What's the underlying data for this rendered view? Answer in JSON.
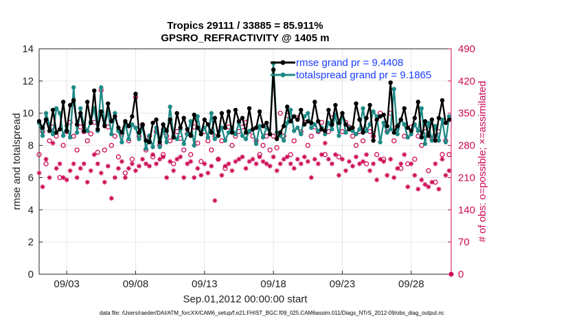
{
  "chart_data": {
    "type": "line",
    "title": "Tropics 29111 / 33885 = 85.911%",
    "subtitle": "GPSRO_REFRACTIVITY @ 1405 m",
    "xlabel": "Sep.01,2012 00:00:00 start",
    "ylabel_left": "rmse and totalspread",
    "ylabel_right": "# of obs: o=possible; ×=assimilated",
    "xlim": [
      1,
      30.9
    ],
    "ylim_left": [
      0,
      14
    ],
    "ylim_right": [
      0,
      490
    ],
    "x_ticks": [
      {
        "value": 3,
        "label": "09/03"
      },
      {
        "value": 8,
        "label": "09/08"
      },
      {
        "value": 13,
        "label": "09/13"
      },
      {
        "value": 18,
        "label": "09/18"
      },
      {
        "value": 23,
        "label": "09/23"
      },
      {
        "value": 28,
        "label": "09/28"
      }
    ],
    "y_ticks_left": [
      "0",
      "2",
      "4",
      "6",
      "8",
      "10",
      "12",
      "14"
    ],
    "y_ticks_right": [
      "0",
      "70",
      "140",
      "210",
      "280",
      "350",
      "420",
      "490"
    ],
    "grid": true,
    "legend": "top-right",
    "footer": "data file: /Users/raeder/DAI/ATM_forcXX/CAM6_setup/f.e21.FHIST_BGC.f09_025.CAM6assim.011/Diags_NTrS_2012-09/obs_diag_output.nc",
    "series": [
      {
        "name": "rmse grand pr = 9.4408",
        "color": "#000000",
        "axis": "left",
        "x": [
          1.0,
          1.25,
          1.5,
          1.75,
          2.0,
          2.25,
          2.5,
          2.75,
          3.0,
          3.25,
          3.5,
          3.75,
          4.0,
          4.25,
          4.5,
          4.75,
          5.0,
          5.25,
          5.5,
          5.75,
          6.0,
          6.25,
          6.5,
          6.75,
          7.0,
          7.25,
          7.5,
          7.75,
          8.0,
          8.25,
          8.5,
          8.75,
          9.0,
          9.25,
          9.5,
          9.75,
          10.0,
          10.25,
          10.5,
          10.75,
          11.0,
          11.25,
          11.5,
          11.75,
          12.0,
          12.25,
          12.5,
          12.75,
          13.0,
          13.25,
          13.5,
          13.75,
          14.0,
          14.25,
          14.5,
          14.75,
          15.0,
          15.25,
          15.5,
          15.75,
          16.0,
          16.25,
          16.5,
          16.75,
          17.0,
          17.25,
          17.5,
          17.75,
          18.0,
          18.25,
          18.5,
          18.75,
          19.0,
          19.25,
          19.5,
          19.75,
          20.0,
          20.25,
          20.5,
          20.75,
          21.0,
          21.25,
          21.5,
          21.75,
          22.0,
          22.25,
          22.5,
          22.75,
          23.0,
          23.25,
          23.5,
          23.75,
          24.0,
          24.25,
          24.5,
          24.75,
          25.0,
          25.25,
          25.5,
          25.75,
          26.0,
          26.25,
          26.5,
          26.75,
          27.0,
          27.25,
          27.5,
          27.75,
          28.0,
          28.25,
          28.5,
          28.75,
          29.0,
          29.25,
          29.5,
          29.75,
          30.0,
          30.25,
          30.5,
          30.75
        ],
        "values": [
          9.5,
          9.1,
          9.6,
          8.9,
          10.2,
          8.8,
          9.0,
          10.7,
          8.9,
          10.5,
          10.8,
          9.3,
          10.0,
          8.9,
          10.7,
          9.4,
          11.4,
          9.0,
          10.1,
          9.2,
          10.6,
          9.5,
          9.8,
          9.1,
          8.8,
          9.5,
          9.2,
          9.8,
          11.2,
          8.8,
          9.3,
          8.3,
          8.2,
          9.4,
          9.6,
          8.2,
          9.3,
          8.9,
          9.6,
          8.5,
          10.0,
          9.1,
          9.7,
          9.0,
          8.6,
          9.9,
          9.1,
          8.7,
          9.6,
          9.3,
          8.8,
          9.7,
          8.6,
          10.0,
          9.1,
          10.1,
          8.8,
          10.2,
          9.5,
          9.7,
          8.8,
          10.3,
          9.0,
          9.1,
          10.1,
          9.2,
          9.4,
          8.7,
          12.7,
          8.4,
          8.8,
          9.2,
          10.4,
          9.5,
          9.8,
          9.6,
          10.2,
          9.3,
          9.5,
          9.4,
          10.7,
          9.5,
          9.0,
          8.9,
          10.2,
          9.3,
          10.5,
          9.4,
          10.0,
          9.3,
          9.0,
          9.1,
          10.6,
          9.6,
          8.8,
          9.7,
          10.5,
          8.3,
          9.6,
          9.8,
          9.9,
          9.2,
          11.9,
          8.8,
          9.2,
          9.6,
          10.3,
          9.1,
          8.9,
          9.7,
          10.7,
          8.5,
          9.5,
          8.6,
          9.6,
          8.3,
          9.7,
          10.8,
          9.4,
          9.6
        ]
      },
      {
        "name": "totalspread grand pr = 9.1865",
        "color": "#1f8a86",
        "axis": "left",
        "x": [
          1.0,
          1.25,
          1.5,
          1.75,
          2.0,
          2.25,
          2.5,
          2.75,
          3.0,
          3.25,
          3.5,
          3.75,
          4.0,
          4.25,
          4.5,
          4.75,
          5.0,
          5.25,
          5.5,
          5.75,
          6.0,
          6.25,
          6.5,
          6.75,
          7.0,
          7.25,
          7.5,
          7.75,
          8.0,
          8.25,
          8.5,
          8.75,
          9.0,
          9.25,
          9.5,
          9.75,
          10.0,
          10.25,
          10.5,
          10.75,
          11.0,
          11.25,
          11.5,
          11.75,
          12.0,
          12.25,
          12.5,
          12.75,
          13.0,
          13.25,
          13.5,
          13.75,
          14.0,
          14.25,
          14.5,
          14.75,
          15.0,
          15.25,
          15.5,
          15.75,
          16.0,
          16.25,
          16.5,
          16.75,
          17.0,
          17.25,
          17.5,
          17.75,
          18.0,
          18.25,
          18.5,
          18.75,
          19.0,
          19.25,
          19.5,
          19.75,
          20.0,
          20.25,
          20.5,
          20.75,
          21.0,
          21.25,
          21.5,
          21.75,
          22.0,
          22.25,
          22.5,
          22.75,
          23.0,
          23.25,
          23.5,
          23.75,
          24.0,
          24.25,
          24.5,
          24.75,
          25.0,
          25.25,
          25.5,
          25.75,
          26.0,
          26.25,
          26.5,
          26.75,
          27.0,
          27.25,
          27.5,
          27.75,
          28.0,
          28.25,
          28.5,
          28.75,
          29.0,
          29.25,
          29.5,
          29.75,
          30.0,
          30.25,
          30.5,
          30.75
        ],
        "values": [
          9.4,
          8.6,
          10.0,
          9.3,
          8.7,
          10.3,
          10.0,
          8.6,
          9.2,
          8.5,
          11.6,
          8.8,
          10.3,
          9.3,
          8.9,
          9.5,
          10.3,
          8.9,
          11.6,
          9.3,
          10.1,
          8.7,
          10.0,
          8.9,
          8.2,
          9.4,
          8.4,
          9.3,
          9.1,
          8.4,
          9.2,
          7.8,
          8.6,
          7.9,
          9.1,
          7.9,
          9.0,
          8.2,
          10.4,
          8.6,
          8.4,
          9.0,
          8.1,
          8.7,
          9.5,
          8.0,
          9.8,
          8.7,
          9.1,
          8.5,
          10.0,
          8.4,
          8.6,
          9.1,
          8.3,
          8.8,
          9.1,
          8.7,
          9.4,
          8.6,
          8.4,
          8.9,
          9.0,
          8.1,
          9.2,
          8.5,
          9.1,
          8.7,
          13.1,
          8.8,
          8.6,
          8.3,
          9.4,
          10.2,
          8.9,
          9.1,
          8.7,
          9.8,
          10.0,
          9.1,
          9.3,
          8.9,
          9.1,
          8.7,
          9.4,
          9.0,
          9.9,
          8.6,
          10.0,
          8.8,
          9.1,
          8.9,
          8.7,
          9.0,
          10.3,
          8.9,
          9.3,
          10.1,
          9.8,
          8.2,
          9.4,
          8.8,
          9.0,
          11.5,
          8.7,
          9.6,
          9.3,
          8.5,
          8.7,
          9.3,
          8.9,
          10.3,
          8.1,
          9.4,
          8.3,
          9.2,
          8.3,
          9.6,
          8.2,
          9.8
        ]
      },
      {
        "name": "possible",
        "color": "#cc0a55",
        "axis": "right",
        "marker": "o",
        "x": [
          1.0,
          1.25,
          1.5,
          1.75,
          2.0,
          2.25,
          2.5,
          2.75,
          3.0,
          3.25,
          3.5,
          3.75,
          4.0,
          4.25,
          4.5,
          4.75,
          5.0,
          5.25,
          5.5,
          5.75,
          6.0,
          6.25,
          6.5,
          6.75,
          7.0,
          7.25,
          7.5,
          7.75,
          8.0,
          8.25,
          8.5,
          8.75,
          9.0,
          9.25,
          9.5,
          9.75,
          10.0,
          10.25,
          10.5,
          10.75,
          11.0,
          11.25,
          11.5,
          11.75,
          12.0,
          12.25,
          12.5,
          12.75,
          13.0,
          13.25,
          13.5,
          13.75,
          14.0,
          14.25,
          14.5,
          14.75,
          15.0,
          15.25,
          15.5,
          15.75,
          16.0,
          16.25,
          16.5,
          16.75,
          17.0,
          17.25,
          17.5,
          17.75,
          18.0,
          18.25,
          18.5,
          18.75,
          19.0,
          19.25,
          19.5,
          19.75,
          20.0,
          20.25,
          20.5,
          20.75,
          21.0,
          21.25,
          21.5,
          21.75,
          22.0,
          22.25,
          22.5,
          22.75,
          23.0,
          23.25,
          23.5,
          23.75,
          24.0,
          24.25,
          24.5,
          24.75,
          25.0,
          25.25,
          25.5,
          25.75,
          26.0,
          26.25,
          26.5,
          26.75,
          27.0,
          27.25,
          27.5,
          27.75,
          28.0,
          28.25,
          28.5,
          28.75,
          29.0,
          29.25,
          29.5,
          29.75,
          30.0,
          30.25,
          30.5,
          30.75
        ],
        "values": [
          260,
          310,
          240,
          290,
          320,
          300,
          210,
          280,
          310,
          330,
          300,
          270,
          320,
          310,
          290,
          305,
          330,
          265,
          400,
          270,
          320,
          280,
          300,
          255,
          305,
          220,
          290,
          250,
          385,
          300,
          325,
          270,
          300,
          255,
          310,
          280,
          260,
          300,
          290,
          240,
          310,
          295,
          270,
          305,
          260,
          320,
          285,
          245,
          310,
          290,
          270,
          300,
          250,
          290,
          230,
          320,
          280,
          300,
          310,
          320,
          330,
          310,
          300,
          290,
          260,
          280,
          300,
          270,
          300,
          275,
          350,
          300,
          345,
          260,
          290,
          340,
          310,
          330,
          280,
          300,
          320,
          310,
          330,
          260,
          310,
          340,
          350,
          255,
          310,
          330,
          320,
          300,
          280,
          310,
          290,
          240,
          310,
          300,
          260,
          350,
          250,
          310,
          350,
          290,
          320,
          230,
          300,
          240,
          320,
          250,
          300,
          280,
          310,
          225,
          295,
          200,
          310,
          260,
          290,
          260
        ]
      },
      {
        "name": "assimilated",
        "color": "#cc0a55",
        "axis": "right",
        "marker": "*",
        "x": [
          1.0,
          1.25,
          1.5,
          1.75,
          2.0,
          2.25,
          2.5,
          2.75,
          3.0,
          3.25,
          3.5,
          3.75,
          4.0,
          4.25,
          4.5,
          4.75,
          5.0,
          5.25,
          5.5,
          5.75,
          6.0,
          6.25,
          6.5,
          6.75,
          7.0,
          7.25,
          7.5,
          7.75,
          8.0,
          8.25,
          8.5,
          8.75,
          9.0,
          9.25,
          9.5,
          9.75,
          10.0,
          10.25,
          10.5,
          10.75,
          11.0,
          11.25,
          11.5,
          11.75,
          12.0,
          12.25,
          12.5,
          12.75,
          13.0,
          13.25,
          13.5,
          13.75,
          14.0,
          14.25,
          14.5,
          14.75,
          15.0,
          15.25,
          15.5,
          15.75,
          16.0,
          16.25,
          16.5,
          16.75,
          17.0,
          17.25,
          17.5,
          17.75,
          18.0,
          18.25,
          18.5,
          18.75,
          19.0,
          19.25,
          19.5,
          19.75,
          20.0,
          20.25,
          20.5,
          20.75,
          21.0,
          21.25,
          21.5,
          21.75,
          22.0,
          22.25,
          22.5,
          22.75,
          23.0,
          23.25,
          23.5,
          23.75,
          24.0,
          24.25,
          24.5,
          24.75,
          25.0,
          25.25,
          25.5,
          25.75,
          26.0,
          26.25,
          26.5,
          26.75,
          27.0,
          27.25,
          27.5,
          27.75,
          28.0,
          28.25,
          28.5,
          28.75,
          29.0,
          29.25,
          29.5,
          29.75,
          30.0,
          30.25,
          30.5,
          30.75
        ],
        "values": [
          220,
          190,
          250,
          210,
          285,
          230,
          240,
          210,
          205,
          225,
          240,
          210,
          230,
          240,
          200,
          225,
          260,
          240,
          220,
          200,
          235,
          165,
          210,
          230,
          245,
          210,
          230,
          240,
          225,
          235,
          250,
          240,
          235,
          260,
          240,
          250,
          255,
          210,
          245,
          225,
          250,
          255,
          210,
          240,
          245,
          210,
          230,
          215,
          240,
          220,
          235,
          160,
          250,
          215,
          235,
          240,
          225,
          245,
          250,
          255,
          230,
          245,
          250,
          240,
          255,
          245,
          240,
          235,
          255,
          225,
          240,
          250,
          255,
          240,
          230,
          250,
          240,
          255,
          245,
          210,
          250,
          240,
          260,
          285,
          250,
          240,
          260,
          215,
          250,
          225,
          245,
          235,
          255,
          240,
          245,
          260,
          225,
          240,
          205,
          250,
          245,
          215,
          250,
          210,
          230,
          240,
          260,
          190,
          240,
          215,
          185,
          205,
          195,
          190,
          200,
          240,
          185,
          250,
          215,
          225
        ]
      }
    ]
  }
}
